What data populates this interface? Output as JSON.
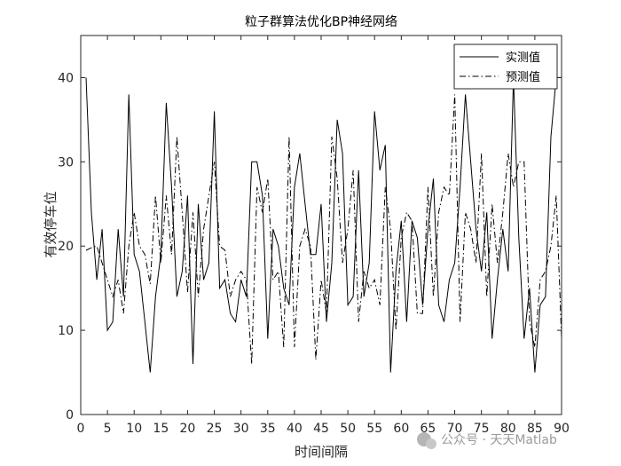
{
  "chart_data": {
    "type": "line",
    "title": "粒子群算法优化BP神经网络",
    "xlabel": "时间间隔",
    "ylabel": "有效停车位",
    "xlim": [
      0,
      90
    ],
    "ylim": [
      0,
      45
    ],
    "xticks": [
      0,
      5,
      10,
      15,
      20,
      25,
      30,
      35,
      40,
      45,
      50,
      55,
      60,
      65,
      70,
      75,
      80,
      85,
      90
    ],
    "yticks": [
      0,
      10,
      20,
      30,
      40
    ],
    "legend_position": "top-right",
    "grid": false,
    "series": [
      {
        "name": "实测值",
        "style": "solid",
        "color": "#000000",
        "x": [
          1,
          2,
          3,
          4,
          5,
          6,
          7,
          8,
          9,
          10,
          11,
          12,
          13,
          14,
          15,
          16,
          17,
          18,
          19,
          20,
          21,
          22,
          23,
          24,
          25,
          26,
          27,
          28,
          29,
          30,
          31,
          32,
          33,
          34,
          35,
          36,
          37,
          38,
          39,
          40,
          41,
          42,
          43,
          44,
          45,
          46,
          47,
          48,
          49,
          50,
          51,
          52,
          53,
          54,
          55,
          56,
          57,
          58,
          59,
          60,
          61,
          62,
          63,
          64,
          65,
          66,
          67,
          68,
          69,
          70,
          71,
          72,
          73,
          74,
          75,
          76,
          77,
          78,
          79,
          80,
          81,
          82,
          83,
          84,
          85,
          86,
          87,
          88,
          89,
          90
        ],
        "values": [
          40,
          24,
          16,
          22,
          10,
          11,
          22,
          14,
          38,
          19,
          17,
          11,
          5,
          14,
          19,
          37,
          27,
          14,
          17,
          26,
          6,
          25,
          16,
          18,
          36,
          15,
          16,
          12,
          11,
          16,
          14,
          30,
          30,
          26,
          9,
          22,
          20,
          15,
          13,
          27,
          31,
          25,
          19,
          19,
          25,
          11,
          18,
          35,
          31,
          13,
          14,
          29,
          14,
          18,
          36,
          29,
          32,
          5,
          17,
          23,
          11,
          23,
          21,
          13,
          22,
          28,
          13,
          11,
          16,
          18,
          27,
          38,
          30,
          22,
          17,
          24,
          9,
          16,
          22,
          17,
          40,
          21,
          9,
          15,
          5,
          13,
          14,
          33,
          40,
          40
        ]
      },
      {
        "name": "预测值",
        "style": "dashdot",
        "color": "#000000",
        "x": [
          1,
          2,
          3,
          4,
          5,
          6,
          7,
          8,
          9,
          10,
          11,
          12,
          13,
          14,
          15,
          16,
          17,
          18,
          19,
          20,
          21,
          22,
          23,
          24,
          25,
          26,
          27,
          28,
          29,
          30,
          31,
          32,
          33,
          34,
          35,
          36,
          37,
          38,
          39,
          40,
          41,
          42,
          43,
          44,
          45,
          46,
          47,
          48,
          49,
          50,
          51,
          52,
          53,
          54,
          55,
          56,
          57,
          58,
          59,
          60,
          61,
          62,
          63,
          64,
          65,
          66,
          67,
          68,
          69,
          70,
          71,
          72,
          73,
          74,
          75,
          76,
          77,
          78,
          79,
          80,
          81,
          82,
          83,
          84,
          85,
          86,
          87,
          88,
          89,
          90
        ],
        "values": [
          19.5,
          19.8,
          20,
          18,
          16,
          14,
          16,
          12,
          20,
          24,
          20,
          19,
          15.5,
          26,
          18,
          26,
          19,
          33,
          24,
          14.5,
          24,
          14,
          22,
          26,
          30,
          20,
          19.5,
          14,
          16,
          17,
          16,
          6,
          27,
          24,
          28,
          16,
          17,
          8,
          33,
          8,
          20,
          22,
          20,
          6.5,
          16,
          12,
          33,
          28,
          18,
          22,
          29,
          11,
          17,
          15,
          16,
          13,
          27,
          22,
          10,
          21,
          24,
          23,
          12,
          12,
          27,
          14,
          24,
          27,
          26,
          38,
          11,
          24,
          22,
          18,
          31,
          14,
          25,
          18,
          24,
          31,
          27,
          30,
          30,
          11,
          8,
          16,
          17,
          20,
          26,
          9
        ]
      }
    ]
  },
  "watermark": {
    "text": "公众号 · 天天Matlab"
  }
}
